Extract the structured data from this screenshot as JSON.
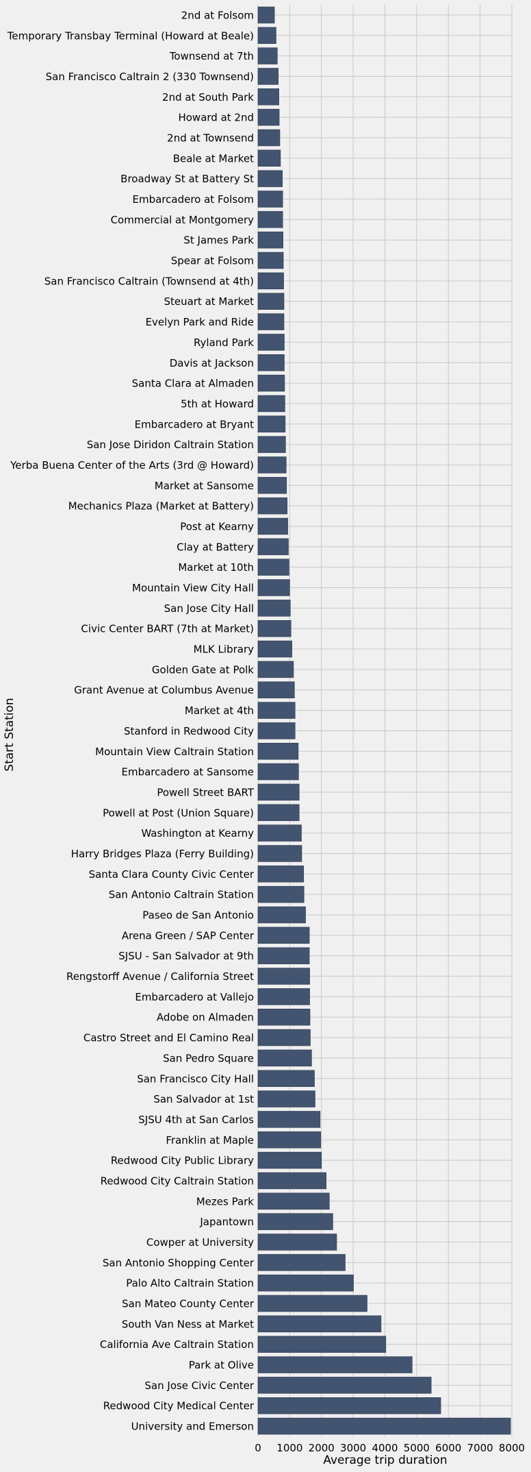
{
  "chart_data": {
    "type": "bar",
    "orientation": "horizontal",
    "title": "",
    "xlabel": "Average trip duration",
    "ylabel": "Start Station",
    "xlim": [
      0,
      8000
    ],
    "xticks": [
      "0",
      "1000",
      "2000",
      "3000",
      "4000",
      "5000",
      "6000",
      "7000",
      "8000"
    ],
    "xtick_values": [
      0,
      1000,
      2000,
      3000,
      4000,
      5000,
      6000,
      7000,
      8000
    ],
    "grid": true,
    "bar_color": "#435470",
    "categories": [
      "2nd at Folsom",
      "Temporary Transbay Terminal (Howard at Beale)",
      "Townsend at 7th",
      "San Francisco Caltrain 2 (330 Townsend)",
      "2nd at South Park",
      "Howard at 2nd",
      "2nd at Townsend",
      "Beale at Market",
      "Broadway St at Battery St",
      "Embarcadero at Folsom",
      "Commercial at Montgomery",
      "St James Park",
      "Spear at Folsom",
      "San Francisco Caltrain (Townsend at 4th)",
      "Steuart at Market",
      "Evelyn Park and Ride",
      "Ryland Park",
      "Davis at Jackson",
      "Santa Clara at Almaden",
      "5th at Howard",
      "Embarcadero at Bryant",
      "San Jose Diridon Caltrain Station",
      "Yerba Buena Center of the Arts (3rd @ Howard)",
      "Market at Sansome",
      "Mechanics Plaza (Market at Battery)",
      "Post at Kearny",
      "Clay at Battery",
      "Market at 10th",
      "Mountain View City Hall",
      "San Jose City Hall",
      "Civic Center BART (7th at Market)",
      "MLK Library",
      "Golden Gate at Polk",
      "Grant Avenue at Columbus Avenue",
      "Market at 4th",
      "Stanford in Redwood City",
      "Mountain View Caltrain Station",
      "Embarcadero at Sansome",
      "Powell Street BART",
      "Powell at Post (Union Square)",
      "Washington at Kearny",
      "Harry Bridges Plaza (Ferry Building)",
      "Santa Clara County Civic Center",
      "San Antonio Caltrain Station",
      "Paseo de San Antonio",
      "Arena Green / SAP Center",
      "SJSU - San Salvador at 9th",
      "Rengstorff Avenue / California Street",
      "Embarcadero at Vallejo",
      "Adobe on Almaden",
      "Castro Street and El Camino Real",
      "San Pedro Square",
      "San Francisco City Hall",
      "San Salvador at 1st",
      "SJSU 4th at San Carlos",
      "Franklin at Maple",
      "Redwood City Public Library",
      "Redwood City Caltrain Station",
      "Mezes Park",
      "Japantown",
      "Cowper at University",
      "San Antonio Shopping Center",
      "Palo Alto Caltrain Station",
      "San Mateo County Center",
      "South Van Ness at Market",
      "California Ave Caltrain Station",
      "Park at Olive",
      "San Jose Civic Center",
      "Redwood City Medical Center",
      "University and Emerson"
    ],
    "values": [
      520,
      570,
      610,
      640,
      660,
      670,
      690,
      710,
      770,
      780,
      780,
      790,
      800,
      810,
      820,
      820,
      830,
      830,
      840,
      850,
      860,
      870,
      890,
      900,
      920,
      940,
      960,
      980,
      1000,
      1020,
      1040,
      1070,
      1120,
      1150,
      1170,
      1170,
      1270,
      1280,
      1300,
      1300,
      1370,
      1380,
      1440,
      1450,
      1500,
      1620,
      1620,
      1630,
      1630,
      1640,
      1650,
      1690,
      1780,
      1800,
      1960,
      1980,
      2000,
      2150,
      2250,
      2360,
      2480,
      2750,
      3010,
      3440,
      3880,
      4030,
      4860,
      5460,
      5760,
      7960
    ]
  }
}
